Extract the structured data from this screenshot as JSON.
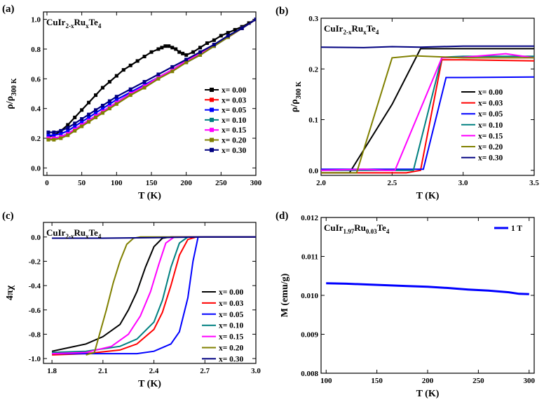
{
  "panel_labels": [
    "(a)",
    "(b)",
    "(c)",
    "(d)"
  ],
  "chart_data": [
    {
      "panel": "(a)",
      "type": "line",
      "annotation": {
        "base": "CuIr",
        "sub1": "2-x",
        "mid": "Ru",
        "sub2": "x",
        "end": "Te",
        "sub3": "4"
      },
      "xlabel": "T (K)",
      "ylabel": {
        "base": "ρ/ρ",
        "sub": "300 K"
      },
      "xlim": [
        -5,
        300
      ],
      "ylim": [
        -0.05,
        1.05
      ],
      "xticks": [
        "0",
        "50",
        "100",
        "150",
        "200",
        "250",
        "300"
      ],
      "yticks": [
        "0.0",
        "0.2",
        "0.4",
        "0.6",
        "0.8",
        "1.0"
      ],
      "legend_position": "right",
      "series": [
        {
          "name": "x= 0.00",
          "color": "#000000",
          "marker": "square",
          "x": [
            2,
            10,
            20,
            30,
            40,
            50,
            60,
            70,
            80,
            90,
            100,
            110,
            120,
            130,
            140,
            150,
            160,
            165,
            170,
            175,
            180,
            185,
            190,
            195,
            200,
            210,
            220,
            230,
            240,
            250,
            260,
            270,
            280,
            290,
            300
          ],
          "y": [
            0.21,
            0.22,
            0.25,
            0.29,
            0.34,
            0.39,
            0.44,
            0.49,
            0.54,
            0.58,
            0.62,
            0.66,
            0.69,
            0.72,
            0.75,
            0.78,
            0.8,
            0.81,
            0.82,
            0.82,
            0.81,
            0.8,
            0.78,
            0.77,
            0.76,
            0.78,
            0.81,
            0.84,
            0.86,
            0.89,
            0.91,
            0.93,
            0.95,
            0.975,
            1.0
          ]
        },
        {
          "name": "x= 0.03",
          "color": "#ff0000",
          "marker": "square",
          "x": [
            2,
            10,
            20,
            30,
            40,
            50,
            60,
            70,
            80,
            90,
            100,
            120,
            140,
            160,
            180,
            200,
            220,
            240,
            260,
            280,
            300
          ],
          "y": [
            0.2,
            0.2,
            0.21,
            0.23,
            0.26,
            0.29,
            0.32,
            0.35,
            0.38,
            0.41,
            0.44,
            0.5,
            0.55,
            0.61,
            0.66,
            0.72,
            0.77,
            0.83,
            0.88,
            0.94,
            1.0
          ]
        },
        {
          "name": "x= 0.05",
          "color": "#0000ff",
          "marker": "square",
          "x": [
            2,
            10,
            20,
            30,
            40,
            50,
            60,
            70,
            80,
            90,
            100,
            120,
            140,
            160,
            180,
            200,
            220,
            240,
            260,
            280,
            300
          ],
          "y": [
            0.22,
            0.22,
            0.23,
            0.25,
            0.28,
            0.31,
            0.34,
            0.37,
            0.4,
            0.43,
            0.46,
            0.51,
            0.56,
            0.61,
            0.66,
            0.71,
            0.76,
            0.82,
            0.88,
            0.94,
            1.0
          ]
        },
        {
          "name": "x= 0.10",
          "color": "#008080",
          "marker": "square",
          "x": [
            2,
            10,
            20,
            30,
            40,
            50,
            60,
            70,
            80,
            90,
            100,
            120,
            140,
            160,
            180,
            200,
            220,
            240,
            260,
            280,
            300
          ],
          "y": [
            0.2,
            0.2,
            0.21,
            0.23,
            0.26,
            0.29,
            0.32,
            0.35,
            0.38,
            0.41,
            0.44,
            0.5,
            0.55,
            0.61,
            0.66,
            0.72,
            0.77,
            0.83,
            0.88,
            0.94,
            1.0
          ]
        },
        {
          "name": "x= 0.15",
          "color": "#ff00ff",
          "marker": "square",
          "x": [
            2,
            10,
            20,
            30,
            40,
            50,
            60,
            70,
            80,
            90,
            100,
            120,
            140,
            160,
            180,
            200,
            220,
            240,
            260,
            280,
            300
          ],
          "y": [
            0.2,
            0.2,
            0.21,
            0.23,
            0.26,
            0.29,
            0.32,
            0.35,
            0.38,
            0.41,
            0.44,
            0.5,
            0.55,
            0.61,
            0.66,
            0.72,
            0.77,
            0.83,
            0.88,
            0.94,
            1.0
          ]
        },
        {
          "name": "x= 0.20",
          "color": "#808000",
          "marker": "square",
          "x": [
            2,
            10,
            20,
            30,
            40,
            50,
            60,
            70,
            80,
            90,
            100,
            120,
            140,
            160,
            180,
            200,
            220,
            240,
            260,
            280,
            300
          ],
          "y": [
            0.19,
            0.19,
            0.2,
            0.22,
            0.25,
            0.28,
            0.31,
            0.34,
            0.37,
            0.4,
            0.43,
            0.49,
            0.54,
            0.6,
            0.65,
            0.71,
            0.76,
            0.82,
            0.88,
            0.94,
            1.0
          ]
        },
        {
          "name": "x= 0.30",
          "color": "#000080",
          "marker": "square",
          "x": [
            2,
            10,
            20,
            30,
            40,
            50,
            60,
            70,
            80,
            90,
            100,
            120,
            140,
            160,
            180,
            200,
            220,
            240,
            260,
            280,
            300
          ],
          "y": [
            0.24,
            0.24,
            0.25,
            0.27,
            0.3,
            0.33,
            0.36,
            0.39,
            0.42,
            0.45,
            0.48,
            0.53,
            0.58,
            0.63,
            0.68,
            0.73,
            0.78,
            0.83,
            0.89,
            0.94,
            1.0
          ]
        }
      ]
    },
    {
      "panel": "(b)",
      "type": "line",
      "annotation": {
        "base": "CuIr",
        "sub1": "2-x",
        "mid": "Ru",
        "sub2": "x",
        "end": "Te",
        "sub3": "4"
      },
      "xlabel": "T (K)",
      "ylabel": {
        "base": "ρ/ρ",
        "sub": "300 K"
      },
      "xlim": [
        2.0,
        3.5
      ],
      "ylim": [
        -0.01,
        0.3
      ],
      "xticks": [
        "2.0",
        "2.5",
        "3.0",
        "3.5"
      ],
      "yticks": [
        "0.0",
        "0.1",
        "0.2",
        "0.3"
      ],
      "legend_position": "right",
      "series": [
        {
          "name": "x= 0.00",
          "color": "#000000",
          "x": [
            2.0,
            2.2,
            2.5,
            2.7,
            3.0,
            3.5
          ],
          "y": [
            -0.005,
            -0.005,
            0.13,
            0.24,
            0.24,
            0.24
          ]
        },
        {
          "name": "x= 0.03",
          "color": "#ff0000",
          "x": [
            2.0,
            2.6,
            2.7,
            2.85,
            3.0,
            3.5
          ],
          "y": [
            -0.005,
            -0.005,
            0.0,
            0.218,
            0.218,
            0.216
          ]
        },
        {
          "name": "x= 0.05",
          "color": "#0000ff",
          "x": [
            2.0,
            2.7,
            2.72,
            2.88,
            3.0,
            3.5
          ],
          "y": [
            0.002,
            0.002,
            0.002,
            0.183,
            0.183,
            0.184
          ]
        },
        {
          "name": "x= 0.10",
          "color": "#008080",
          "x": [
            2.0,
            2.6,
            2.65,
            2.85,
            3.0,
            3.5
          ],
          "y": [
            0.0,
            0.0,
            0.0,
            0.223,
            0.225,
            0.225
          ]
        },
        {
          "name": "x= 0.15",
          "color": "#ff00ff",
          "x": [
            2.0,
            2.3,
            2.45,
            2.52,
            2.85,
            3.0,
            3.3,
            3.4,
            3.5
          ],
          "y": [
            0.0,
            0.002,
            0.0,
            0.0,
            0.222,
            0.223,
            0.23,
            0.226,
            0.222
          ]
        },
        {
          "name": "x= 0.20",
          "color": "#808000",
          "x": [
            2.0,
            2.2,
            2.25,
            2.5,
            2.65,
            3.0,
            3.5
          ],
          "y": [
            -0.005,
            -0.005,
            -0.005,
            0.222,
            0.226,
            0.222,
            0.222
          ]
        },
        {
          "name": "x= 0.30",
          "color": "#000080",
          "x": [
            2.0,
            2.3,
            2.5,
            2.7,
            3.0,
            3.5
          ],
          "y": [
            0.243,
            0.242,
            0.244,
            0.243,
            0.245,
            0.245
          ]
        }
      ]
    },
    {
      "panel": "(c)",
      "type": "line",
      "annotation": {
        "base": "CuIr",
        "sub1": "2-x",
        "mid": "Ru",
        "sub2": "x",
        "end": "Te",
        "sub3": "4"
      },
      "xlabel": "T (K)",
      "ylabel": {
        "base": "4πχ",
        "sub": ""
      },
      "xlim": [
        1.75,
        3.0
      ],
      "ylim": [
        -1.04,
        0.12
      ],
      "xticks": [
        "1.8",
        "2.1",
        "2.4",
        "2.7",
        "3.0"
      ],
      "yticks": [
        "0.0",
        "-0.2",
        "-0.4",
        "-0.6",
        "-0.8",
        "-1.0"
      ],
      "legend_position": "bottom-right",
      "series": [
        {
          "name": "x= 0.00",
          "color": "#000000",
          "x": [
            1.8,
            1.9,
            2.0,
            2.1,
            2.2,
            2.25,
            2.3,
            2.35,
            2.4,
            2.45,
            2.5,
            3.0
          ],
          "y": [
            -0.94,
            -0.91,
            -0.88,
            -0.82,
            -0.72,
            -0.6,
            -0.45,
            -0.25,
            -0.08,
            -0.01,
            0.0,
            0.0
          ]
        },
        {
          "name": "x= 0.03",
          "color": "#ff0000",
          "x": [
            1.8,
            2.0,
            2.2,
            2.3,
            2.4,
            2.45,
            2.5,
            2.55,
            2.6,
            2.65,
            3.0
          ],
          "y": [
            -0.97,
            -0.96,
            -0.93,
            -0.88,
            -0.76,
            -0.62,
            -0.4,
            -0.15,
            -0.02,
            0.0,
            0.0
          ]
        },
        {
          "name": "x= 0.05",
          "color": "#0000ff",
          "x": [
            1.8,
            2.1,
            2.3,
            2.4,
            2.5,
            2.55,
            2.6,
            2.63,
            2.66,
            3.0
          ],
          "y": [
            -0.96,
            -0.96,
            -0.96,
            -0.94,
            -0.88,
            -0.78,
            -0.5,
            -0.2,
            0.0,
            0.0
          ]
        },
        {
          "name": "x= 0.10",
          "color": "#008080",
          "x": [
            1.8,
            2.0,
            2.2,
            2.3,
            2.4,
            2.45,
            2.5,
            2.55,
            2.6,
            3.0
          ],
          "y": [
            -0.95,
            -0.94,
            -0.9,
            -0.84,
            -0.7,
            -0.52,
            -0.25,
            -0.05,
            0.0,
            0.0
          ]
        },
        {
          "name": "x= 0.15",
          "color": "#ff00ff",
          "x": [
            1.8,
            2.0,
            2.15,
            2.25,
            2.32,
            2.38,
            2.43,
            2.47,
            2.52,
            3.0
          ],
          "y": [
            -0.96,
            -0.95,
            -0.9,
            -0.8,
            -0.65,
            -0.45,
            -0.22,
            -0.05,
            0.0,
            0.0
          ]
        },
        {
          "name": "x= 0.20",
          "color": "#808000",
          "x": [
            2.0,
            2.05,
            2.08,
            2.12,
            2.16,
            2.2,
            2.24,
            2.28,
            2.32,
            3.0
          ],
          "y": [
            -0.97,
            -0.95,
            -0.8,
            -0.6,
            -0.38,
            -0.2,
            -0.06,
            -0.01,
            0.0,
            0.0
          ]
        },
        {
          "name": "x= 0.30",
          "color": "#000080",
          "x": [
            1.8,
            2.1,
            2.4,
            2.7,
            3.0
          ],
          "y": [
            -0.01,
            -0.01,
            -0.005,
            0.0,
            0.0
          ]
        }
      ]
    },
    {
      "panel": "(d)",
      "type": "line",
      "annotation": {
        "base": "CuIr",
        "sub1": "1.97",
        "mid": "Ru",
        "sub2": "0.03",
        "end": "Te",
        "sub3": "4"
      },
      "xlabel": "T (K)",
      "ylabel": {
        "base": "M (emu/g)",
        "sub": ""
      },
      "xlim": [
        95,
        305
      ],
      "ylim": [
        0.008,
        0.012
      ],
      "xticks": [
        "100",
        "150",
        "200",
        "250",
        "300"
      ],
      "yticks": [
        "0.008",
        "0.009",
        "0.010",
        "0.011",
        "0.012"
      ],
      "legend_position": "top-right",
      "series": [
        {
          "name": "1 T",
          "color": "#0000ff",
          "x": [
            100,
            120,
            140,
            160,
            180,
            200,
            220,
            240,
            260,
            280,
            290,
            300
          ],
          "y": [
            0.01031,
            0.0103,
            0.01028,
            0.01026,
            0.01024,
            0.01022,
            0.01019,
            0.01015,
            0.01012,
            0.01008,
            0.01004,
            0.01003
          ]
        }
      ]
    }
  ]
}
